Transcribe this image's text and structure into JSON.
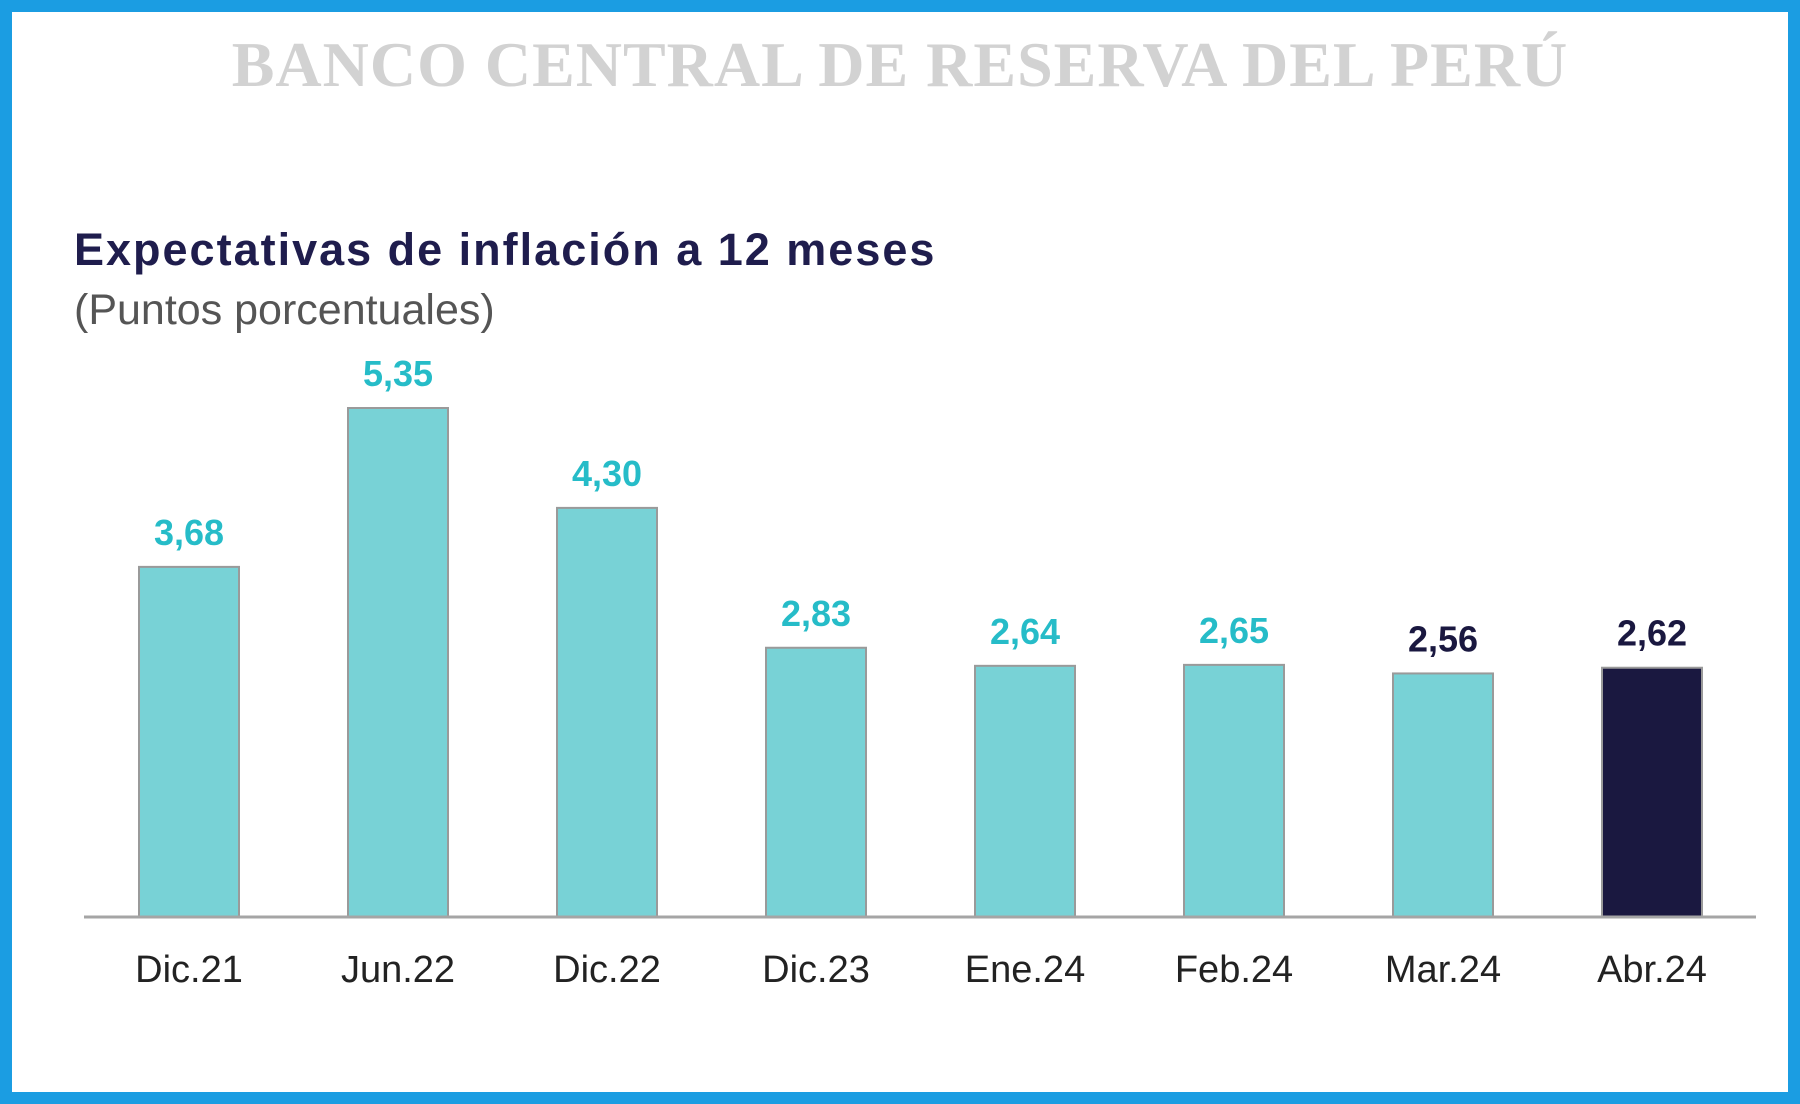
{
  "watermark": "BANCO CENTRAL DE RESERVA DEL PERÚ",
  "chart_data": {
    "type": "bar",
    "title": "Expectativas de inflación a 12 meses",
    "subtitle": "(Puntos porcentuales)",
    "categories": [
      "Dic.21",
      "Jun.22",
      "Dic.22",
      "Dic.23",
      "Ene.24",
      "Feb.24",
      "Mar.24",
      "Abr.24"
    ],
    "values": [
      3.68,
      5.35,
      4.3,
      2.83,
      2.64,
      2.65,
      2.56,
      2.62
    ],
    "value_labels": [
      "3,68",
      "5,35",
      "4,30",
      "2,83",
      "2,64",
      "2,65",
      "2,56",
      "2,62"
    ],
    "bar_colors": [
      "#78d2d6",
      "#78d2d6",
      "#78d2d6",
      "#78d2d6",
      "#78d2d6",
      "#78d2d6",
      "#78d2d6",
      "#1a1840"
    ],
    "label_colors": [
      "#26bcc8",
      "#26bcc8",
      "#26bcc8",
      "#26bcc8",
      "#26bcc8",
      "#26bcc8",
      "#1a1840",
      "#1a1840"
    ],
    "grid": false,
    "legend": "none",
    "ylim": [
      0,
      5.35
    ]
  }
}
